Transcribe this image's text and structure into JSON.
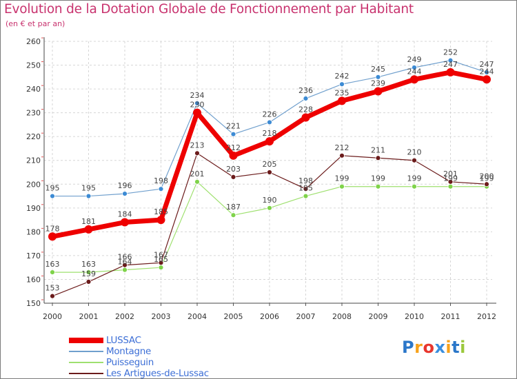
{
  "title": "Evolution de la Dotation Globale de Fonctionnement par Habitant",
  "subtitle": "(en € et par an)",
  "logo": {
    "text": "Proxiti",
    "letters": [
      {
        "ch": "P",
        "color": "#2b77c9"
      },
      {
        "ch": "r",
        "color": "#f7a21b"
      },
      {
        "ch": "o",
        "color": "#e8362d"
      },
      {
        "ch": "x",
        "color": "#3a8ede"
      },
      {
        "ch": "i",
        "color": "#f7a21b"
      },
      {
        "ch": "t",
        "color": "#2b77c9"
      },
      {
        "ch": "i",
        "color": "#9bc83b"
      }
    ]
  },
  "chart_data": {
    "type": "line",
    "title": "Evolution de la Dotation Globale de Fonctionnement par Habitant",
    "subtitle": "(en € et par an)",
    "xlabel": "",
    "ylabel": "",
    "x": [
      "2000",
      "2001",
      "2002",
      "2003",
      "2004",
      "2005",
      "2006",
      "2007",
      "2008",
      "2009",
      "2010",
      "2011",
      "2012"
    ],
    "ylim": [
      150,
      260
    ],
    "yticks": [
      150,
      160,
      170,
      180,
      190,
      200,
      210,
      220,
      230,
      240,
      250,
      260
    ],
    "grid": true,
    "legend_position": "bottom-left",
    "series": [
      {
        "name": "LUSSAC",
        "color": "#ee0000",
        "values": [
          178,
          181,
          184,
          185,
          230,
          212,
          218,
          228,
          235,
          239,
          244,
          247,
          244
        ]
      },
      {
        "name": "Montagne",
        "color": "#6f9fcd",
        "values": [
          195,
          195,
          196,
          198,
          234,
          221,
          226,
          236,
          242,
          245,
          249,
          252,
          247
        ]
      },
      {
        "name": "Puisseguin",
        "color": "#9ee06e",
        "values": [
          163,
          163,
          164,
          165,
          201,
          187,
          190,
          195,
          199,
          199,
          199,
          199,
          199
        ]
      },
      {
        "name": "Les Artigues-de-Lussac",
        "color": "#6b1b1b",
        "values": [
          153,
          159,
          166,
          167,
          213,
          203,
          205,
          198,
          212,
          211,
          210,
          201,
          200
        ]
      }
    ]
  }
}
